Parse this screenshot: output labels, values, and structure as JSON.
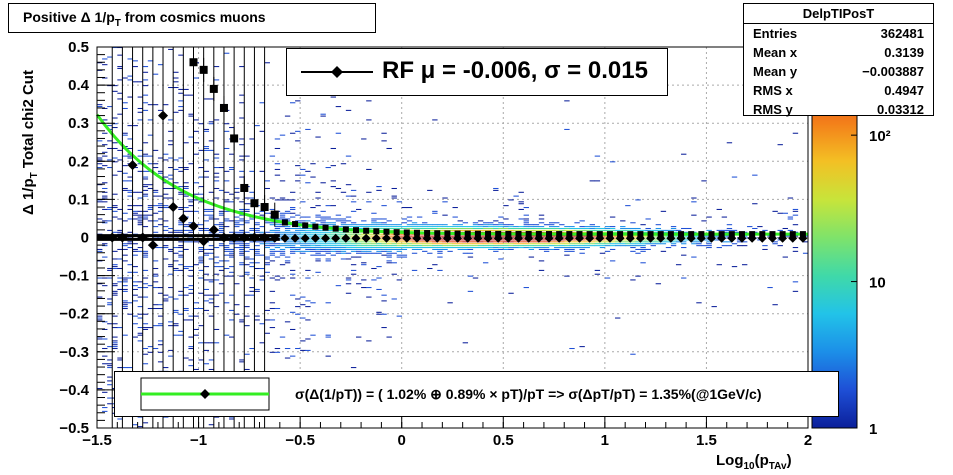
{
  "title": {
    "main": "Positive Δ 1/p",
    "sub": "T",
    "rest": " from cosmics muons"
  },
  "stats": {
    "name": "DelpTIPosT",
    "rows": [
      {
        "label": "Entries",
        "value": "362481"
      },
      {
        "label": "Mean x",
        "value": "0.3139"
      },
      {
        "label": "Mean y",
        "value": "−0.003887"
      },
      {
        "label": "RMS x",
        "value": "0.4947"
      },
      {
        "label": "RMS y",
        "value": "0.03312"
      }
    ]
  },
  "legend_top": {
    "text": "RF μ = -0.006, σ =   0.015"
  },
  "legend_bottom": {
    "text": "σ(Δ(1/pT)) = ( 1.02% ⊕  0.89% × pT)/pT => σ(ΔpT/pT) =  1.35%(@1GeV/c)"
  },
  "axes": {
    "x_title_main": "Log",
    "x_title_sub1": "10",
    "x_title_mid": "(p",
    "x_title_sub2": "TAv",
    "x_title_end": ")",
    "y_title_main": "Δ 1/p",
    "y_title_sub": "T",
    "y_title_rest": "  Total chi2 Cut"
  },
  "colors": {
    "fit_curve": "#33ee22",
    "markers": "#000000"
  },
  "chart_data": {
    "type": "heatmap",
    "xlim": [
      -1.5,
      2.0
    ],
    "ylim": [
      -0.5,
      0.5
    ],
    "x_ticks": [
      "−1.5",
      "−1",
      "−0.5",
      "0",
      "0.5",
      "1",
      "1.5",
      "2"
    ],
    "x_tick_values": [
      -1.5,
      -1,
      -0.5,
      0,
      0.5,
      1,
      1.5,
      2
    ],
    "y_ticks": [
      "0.5",
      "0.4",
      "0.3",
      "0.2",
      "0.1",
      "0",
      "−0.1",
      "−0.2",
      "−0.3",
      "−0.4",
      "−0.5"
    ],
    "y_tick_values": [
      0.5,
      0.4,
      0.3,
      0.2,
      0.1,
      0,
      -0.1,
      -0.2,
      -0.3,
      -0.4,
      -0.5
    ],
    "grid": true,
    "colorbar": {
      "scale": "log",
      "min": 1,
      "max": 400,
      "ticks": [
        "1",
        "10",
        "10²"
      ],
      "tick_values": [
        1,
        10,
        100
      ]
    },
    "sigma_points": {
      "x": [
        -1.425,
        -1.375,
        -1.325,
        -1.275,
        -1.225,
        -1.175,
        -1.125,
        -1.075,
        -1.025,
        -0.975,
        -0.925,
        -0.875,
        -0.825,
        -0.775,
        -0.725,
        -0.675,
        -0.625
      ],
      "y": [
        0.0,
        0.0,
        0.0,
        0.0,
        0.0,
        0.0,
        0.0,
        0.0,
        0.46,
        0.44,
        0.39,
        0.34,
        0.26,
        0.13,
        0.09,
        0.08,
        0.06
      ]
    },
    "mean_points": {
      "x": [
        -1.425,
        -1.375,
        -1.325,
        -1.275,
        -1.225,
        -1.175,
        -1.125,
        -1.075,
        -1.025,
        -0.975,
        -0.925,
        -0.875,
        -0.825,
        -0.775,
        -0.725,
        -0.675
      ],
      "y": [
        0.0,
        0.0,
        0.19,
        0.0,
        -0.02,
        0.32,
        0.08,
        0.05,
        0.03,
        -0.01,
        0.02,
        0.0,
        0.0,
        0.0,
        0.0,
        0.0
      ]
    },
    "fit": {
      "a": 0.0102,
      "b": 0.0089
    },
    "series": [
      {
        "name": "RF μ = -0.006, σ =   0.015"
      },
      {
        "name": "σ(Δ(1/pT)) = ( 1.02% ⊕  0.89% × pT)/pT => σ(ΔpT/pT) =  1.35%(@1GeV/c)"
      }
    ]
  }
}
